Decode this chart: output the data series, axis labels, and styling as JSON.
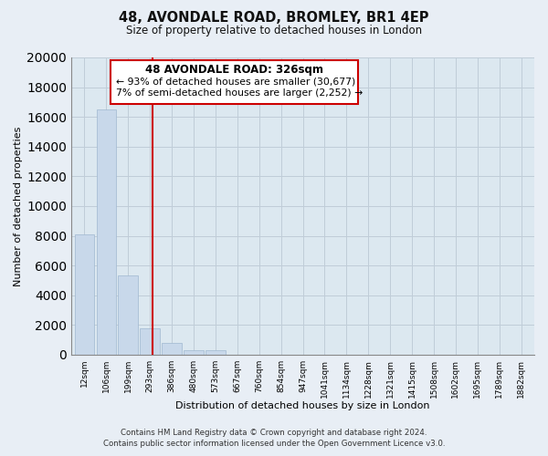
{
  "title": "48, AVONDALE ROAD, BROMLEY, BR1 4EP",
  "subtitle": "Size of property relative to detached houses in London",
  "xlabel": "Distribution of detached houses by size in London",
  "ylabel": "Number of detached properties",
  "bar_color": "#c8d8ea",
  "bar_edge_color": "#a0b8d0",
  "x_labels": [
    "12sqm",
    "106sqm",
    "199sqm",
    "293sqm",
    "386sqm",
    "480sqm",
    "573sqm",
    "667sqm",
    "760sqm",
    "854sqm",
    "947sqm",
    "1041sqm",
    "1134sqm",
    "1228sqm",
    "1321sqm",
    "1415sqm",
    "1508sqm",
    "1602sqm",
    "1695sqm",
    "1789sqm",
    "1882sqm"
  ],
  "bar_heights": [
    8100,
    16500,
    5300,
    1800,
    800,
    300,
    270,
    0,
    0,
    0,
    0,
    0,
    0,
    0,
    0,
    0,
    0,
    0,
    0,
    0,
    0
  ],
  "ylim": [
    0,
    20000
  ],
  "yticks": [
    0,
    2000,
    4000,
    6000,
    8000,
    10000,
    12000,
    14000,
    16000,
    18000,
    20000
  ],
  "property_line_x": 3.14,
  "annotation_box_title": "48 AVONDALE ROAD: 326sqm",
  "annotation_line1": "← 93% of detached houses are smaller (30,677)",
  "annotation_line2": "7% of semi-detached houses are larger (2,252) →",
  "annotation_box_color": "#ffffff",
  "annotation_box_edge_color": "#cc0000",
  "property_line_color": "#cc0000",
  "footer_line1": "Contains HM Land Registry data © Crown copyright and database right 2024.",
  "footer_line2": "Contains public sector information licensed under the Open Government Licence v3.0.",
  "background_color": "#e8eef5",
  "plot_background_color": "#dce8f0",
  "grid_color": "#c0cdd8"
}
